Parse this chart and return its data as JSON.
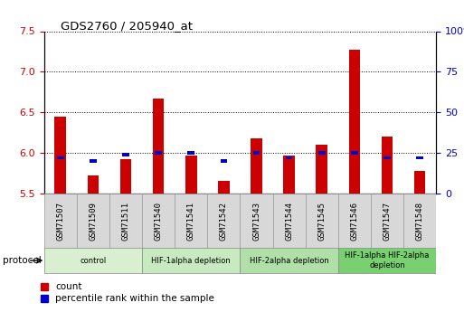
{
  "title": "GDS2760 / 205940_at",
  "samples": [
    "GSM71507",
    "GSM71509",
    "GSM71511",
    "GSM71540",
    "GSM71541",
    "GSM71542",
    "GSM71543",
    "GSM71544",
    "GSM71545",
    "GSM71546",
    "GSM71547",
    "GSM71548"
  ],
  "count_values": [
    6.45,
    5.72,
    5.92,
    6.67,
    5.97,
    5.65,
    6.18,
    5.97,
    6.1,
    7.27,
    6.2,
    5.78
  ],
  "percentile_values": [
    22,
    20,
    24,
    25,
    25,
    20,
    25,
    22,
    25,
    25,
    22,
    22
  ],
  "ylim_left": [
    5.5,
    7.5
  ],
  "ylim_right": [
    0,
    100
  ],
  "yticks_left": [
    5.5,
    6.0,
    6.5,
    7.0,
    7.5
  ],
  "yticks_right": [
    0,
    25,
    50,
    75,
    100
  ],
  "groups": [
    {
      "label": "control",
      "start": 0,
      "end": 3,
      "color": "#d8f0d0"
    },
    {
      "label": "HIF-1alpha depletion",
      "start": 3,
      "end": 6,
      "color": "#c8eac0"
    },
    {
      "label": "HIF-2alpha depletion",
      "start": 6,
      "end": 9,
      "color": "#b0e0a8"
    },
    {
      "label": "HIF-1alpha HIF-2alpha\ndepletion",
      "start": 9,
      "end": 12,
      "color": "#78d070"
    }
  ],
  "bar_color_red": "#cc0000",
  "bar_color_blue": "#0000cc",
  "bar_width": 0.35,
  "grid_color": "#000000",
  "tick_color_left": "#cc0000",
  "tick_color_right": "#0000cc",
  "legend_red_label": "count",
  "legend_blue_label": "percentile rank within the sample",
  "protocol_label": "protocol",
  "baseline": 5.5
}
